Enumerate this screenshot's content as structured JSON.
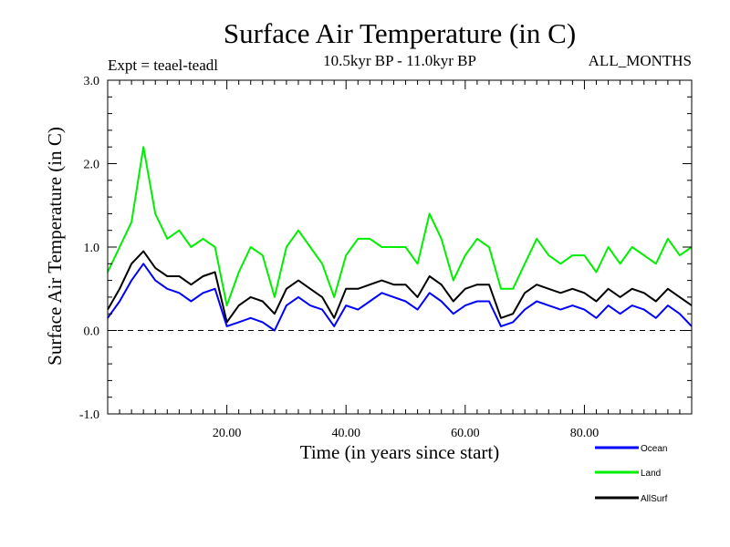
{
  "chart_data": {
    "type": "line",
    "title": "Surface Air Temperature (in C)",
    "subtitle_left": "Expt = teael-teadl",
    "subtitle_center": "10.5kyr BP - 11.0kyr BP",
    "subtitle_right": "ALL_MONTHS",
    "xlabel": "Time (in years since start)",
    "ylabel": "Surface Air Temperature (in C)",
    "xlim": [
      0,
      98
    ],
    "ylim": [
      -1.0,
      3.0
    ],
    "x_ticks": [
      20,
      40,
      60,
      80
    ],
    "x_tick_labels": [
      "20.00",
      "40.00",
      "60.00",
      "80.00"
    ],
    "y_ticks": [
      -1.0,
      0.0,
      1.0,
      2.0,
      3.0
    ],
    "y_tick_labels": [
      "-1.0",
      "0.0",
      "1.0",
      "2.0",
      "3.0"
    ],
    "zero_line": true,
    "legend_position": "bottom-right",
    "x": [
      0,
      2,
      4,
      6,
      8,
      10,
      12,
      14,
      16,
      18,
      20,
      22,
      24,
      26,
      28,
      30,
      32,
      34,
      36,
      38,
      40,
      42,
      44,
      46,
      48,
      50,
      52,
      54,
      56,
      58,
      60,
      62,
      64,
      66,
      68,
      70,
      72,
      74,
      76,
      78,
      80,
      82,
      84,
      86,
      88,
      90,
      92,
      94,
      96,
      98
    ],
    "series": [
      {
        "name": "Ocean",
        "color": "#0000ff",
        "values": [
          0.15,
          0.35,
          0.6,
          0.8,
          0.6,
          0.5,
          0.45,
          0.35,
          0.45,
          0.5,
          0.05,
          0.1,
          0.15,
          0.1,
          0.0,
          0.3,
          0.4,
          0.3,
          0.25,
          0.05,
          0.3,
          0.25,
          0.35,
          0.45,
          0.4,
          0.35,
          0.25,
          0.45,
          0.35,
          0.2,
          0.3,
          0.35,
          0.35,
          0.05,
          0.1,
          0.25,
          0.35,
          0.3,
          0.25,
          0.3,
          0.25,
          0.15,
          0.3,
          0.2,
          0.3,
          0.25,
          0.15,
          0.3,
          0.2,
          0.05
        ]
      },
      {
        "name": "Land",
        "color": "#00ee00",
        "values": [
          0.7,
          1.0,
          1.3,
          2.2,
          1.4,
          1.1,
          1.2,
          1.0,
          1.1,
          1.0,
          0.3,
          0.7,
          1.0,
          0.9,
          0.4,
          1.0,
          1.2,
          1.0,
          0.8,
          0.4,
          0.9,
          1.1,
          1.1,
          1.0,
          1.0,
          1.0,
          0.8,
          1.4,
          1.1,
          0.6,
          0.9,
          1.1,
          1.0,
          0.5,
          0.5,
          0.8,
          1.1,
          0.9,
          0.8,
          0.9,
          0.9,
          0.7,
          1.0,
          0.8,
          1.0,
          0.9,
          0.8,
          1.1,
          0.9,
          1.0
        ]
      },
      {
        "name": "AllSurf",
        "color": "#000000",
        "values": [
          0.25,
          0.5,
          0.8,
          0.95,
          0.75,
          0.65,
          0.65,
          0.55,
          0.65,
          0.7,
          0.1,
          0.3,
          0.4,
          0.35,
          0.2,
          0.5,
          0.6,
          0.5,
          0.4,
          0.15,
          0.5,
          0.5,
          0.55,
          0.6,
          0.55,
          0.55,
          0.4,
          0.65,
          0.55,
          0.35,
          0.5,
          0.55,
          0.55,
          0.15,
          0.2,
          0.45,
          0.55,
          0.5,
          0.45,
          0.5,
          0.45,
          0.35,
          0.5,
          0.4,
          0.5,
          0.45,
          0.35,
          0.5,
          0.4,
          0.3
        ]
      }
    ]
  }
}
